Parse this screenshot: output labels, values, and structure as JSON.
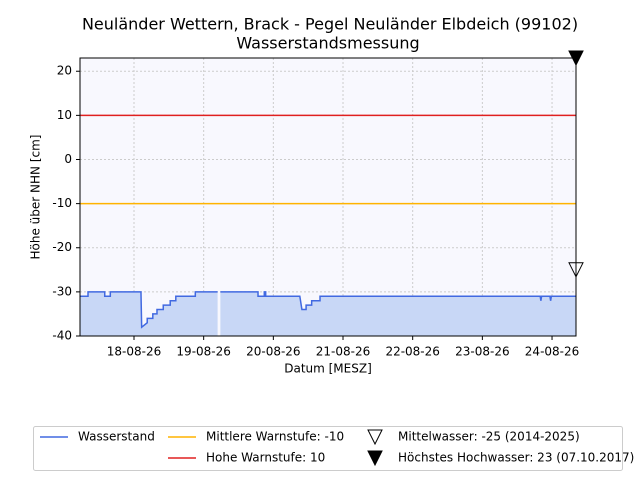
{
  "chart_data": {
    "type": "line",
    "title": "Neuländer Wettern, Brack - Pegel Neuländer Elbdeich (99102)",
    "subtitle": "Wasserstandsmessung",
    "xlabel": "Datum [MESZ]",
    "ylabel": "Höhe über NHN [cm]",
    "xlim": [
      17.225,
      24.344
    ],
    "ylim": [
      -40,
      23
    ],
    "xticks": [
      {
        "value": 18,
        "label": "18-08-26"
      },
      {
        "value": 19,
        "label": "19-08-26"
      },
      {
        "value": 20,
        "label": "20-08-26"
      },
      {
        "value": 21,
        "label": "21-08-26"
      },
      {
        "value": 22,
        "label": "22-08-26"
      },
      {
        "value": 23,
        "label": "23-08-26"
      },
      {
        "value": 24,
        "label": "24-08-26"
      }
    ],
    "yticks": [
      -40,
      -30,
      -20,
      -10,
      0,
      10,
      20
    ],
    "grid": true,
    "series": [
      {
        "name": "Wasserstand",
        "color": "#4169e1",
        "fill_color": "#c8d7f6",
        "x": [
          17.225,
          17.34,
          17.34,
          17.58,
          17.58,
          17.66,
          17.66,
          18.1,
          18.11,
          18.19,
          18.19,
          18.27,
          18.27,
          18.33,
          18.33,
          18.42,
          18.42,
          18.52,
          18.52,
          18.6,
          18.6,
          18.88,
          18.88,
          19.2,
          19.22,
          19.24,
          19.78,
          19.78,
          19.87,
          19.87,
          19.89,
          19.89,
          20.38,
          20.41,
          20.47,
          20.47,
          20.55,
          20.55,
          20.67,
          20.67,
          23.83,
          23.84,
          23.85,
          23.97,
          23.98,
          23.99,
          24.344
        ],
        "values": [
          -31,
          -31,
          -30,
          -30,
          -31,
          -31,
          -30,
          -30,
          -38,
          -37,
          -36,
          -36,
          -35,
          -35,
          -34,
          -34,
          -33,
          -33,
          -32,
          -32,
          -31,
          -31,
          -30,
          -30,
          null,
          -30,
          -30,
          -31,
          -31,
          -30,
          -30,
          -31,
          -31,
          -34,
          -34,
          -33,
          -33,
          -32,
          -32,
          -31,
          -31,
          -32,
          -31,
          -31,
          -32,
          -31,
          -31
        ]
      }
    ],
    "hlines": [
      {
        "name": "Mittlere Warnstufe: -10",
        "value": -10,
        "color": "#ffb300"
      },
      {
        "name": "Hohe Warnstufe: 10",
        "value": 10,
        "color": "#e02020"
      }
    ],
    "markers": [
      {
        "name": "Mittelwasser: -25 (2014-2025)",
        "value": -25,
        "filled": false
      },
      {
        "name": "Höchstes Hochwasser: 23 (07.10.2017)",
        "value": 23,
        "filled": true
      }
    ]
  }
}
